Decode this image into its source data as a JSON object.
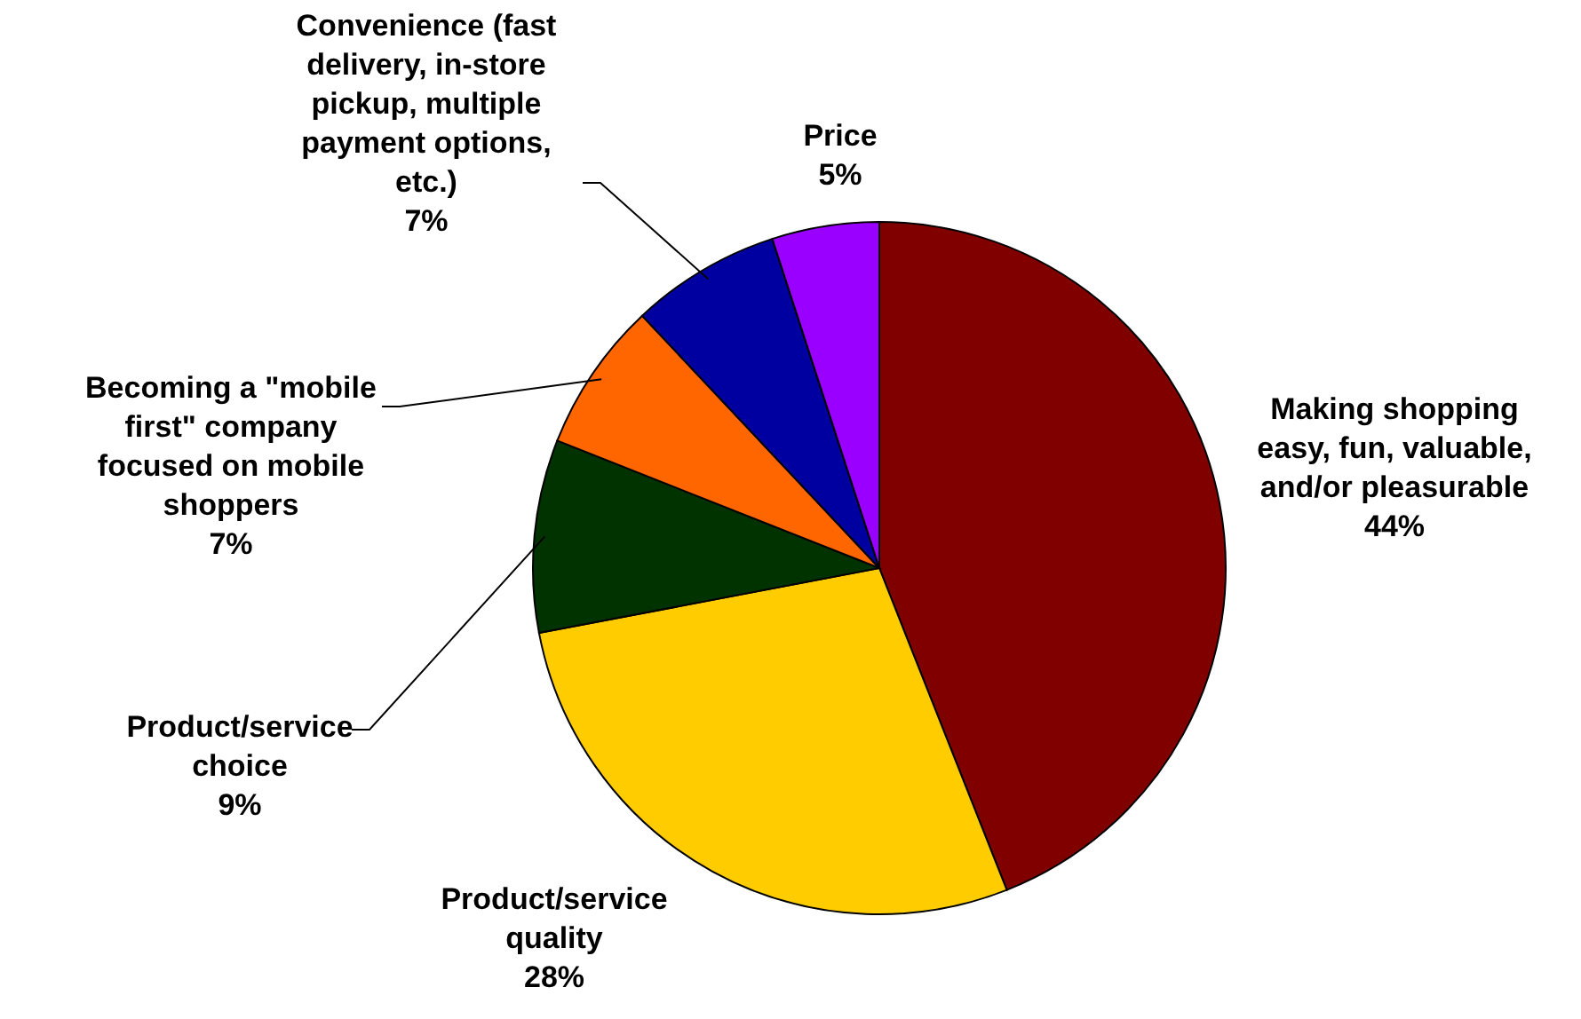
{
  "chart_data": {
    "type": "pie",
    "categories": [
      "Making shopping easy, fun, valuable, and/or pleasurable",
      "Product/service quality",
      "Product/service choice",
      "Becoming a \"mobile first\" company focused on mobile shoppers",
      "Convenience (fast delivery, in-store pickup, multiple payment options, etc.)",
      "Price"
    ],
    "values": [
      44,
      28,
      9,
      7,
      7,
      5
    ],
    "colors": [
      "#800000",
      "#ffcc00",
      "#003300",
      "#ff6600",
      "#0000a0",
      "#9900ff"
    ],
    "value_labels": [
      "44%",
      "28%",
      "9%",
      "7%",
      "7%",
      "5%"
    ]
  }
}
